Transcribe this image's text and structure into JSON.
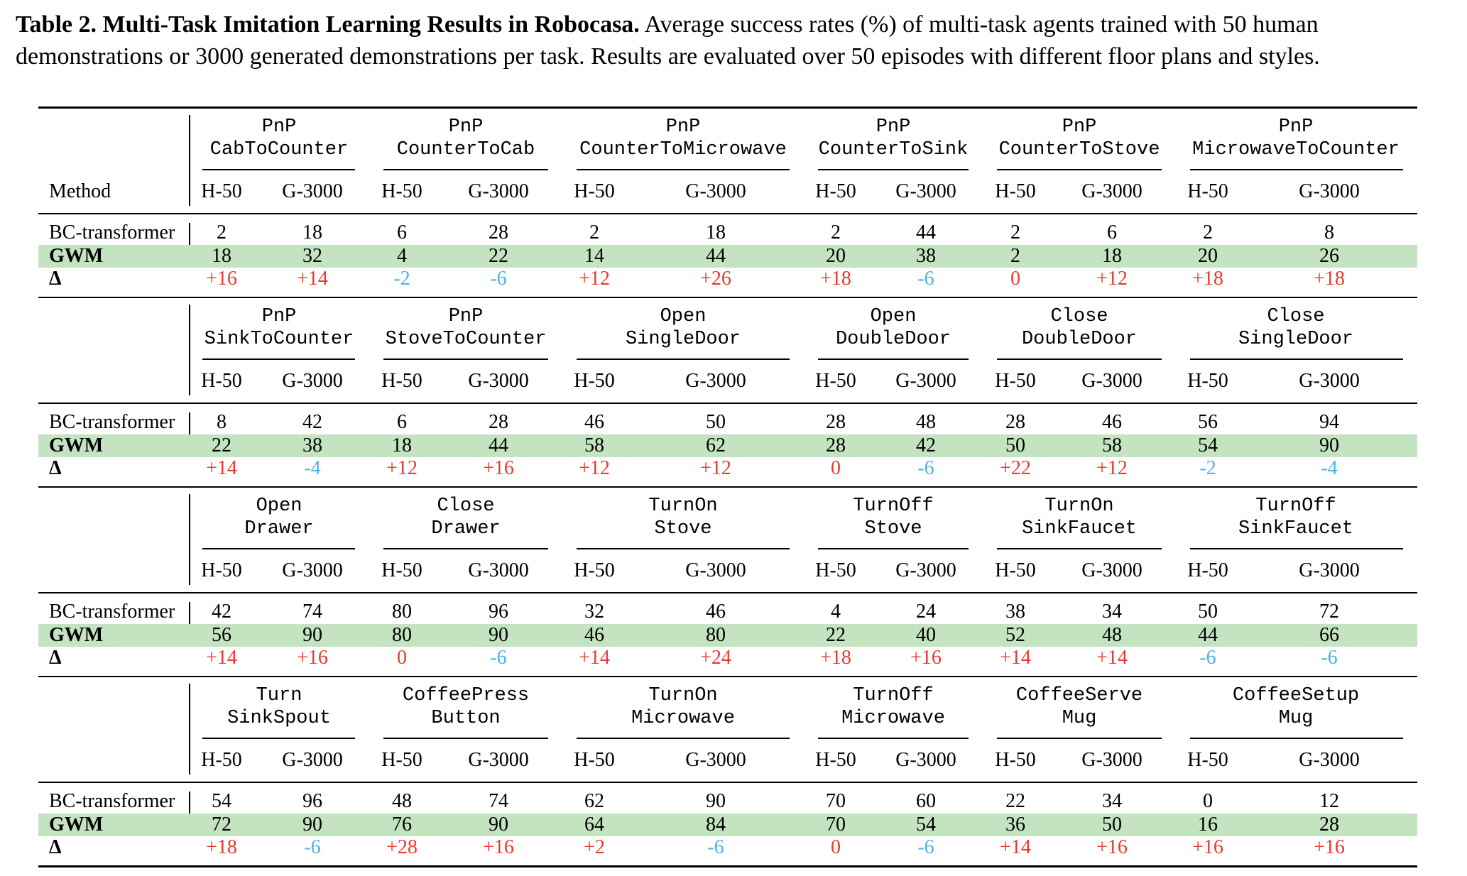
{
  "caption": {
    "label": "Table 2.",
    "title": "Multi-Task Imitation Learning Results in Robocasa.",
    "text": "Average success rates (%) of multi-task agents trained with 50 human demonstrations or 3000 generated demonstrations per task. Results are evaluated over 50 episodes with different floor plans and styles."
  },
  "table": {
    "method_header": "Method",
    "row_labels": [
      "BC-transformer",
      "GWM",
      "Δ"
    ],
    "sub_headers": [
      "H-50",
      "G-3000"
    ],
    "colors": {
      "positive": "#e53a2f",
      "negative": "#4ab3e0",
      "highlight": "#c4e3c0"
    },
    "blocks": [
      {
        "tasks": [
          {
            "line1": "PnP",
            "line2": "CabToCounter",
            "bc": [
              "2",
              "18"
            ],
            "gwm": [
              "18",
              "32"
            ],
            "delta": [
              "+16",
              "+14"
            ]
          },
          {
            "line1": "PnP",
            "line2": "CounterToCab",
            "bc": [
              "6",
              "28"
            ],
            "gwm": [
              "4",
              "22"
            ],
            "delta": [
              "-2",
              "-6"
            ]
          },
          {
            "line1": "PnP",
            "line2": "CounterToMicrowave",
            "bc": [
              "2",
              "18"
            ],
            "gwm": [
              "14",
              "44"
            ],
            "delta": [
              "+12",
              "+26"
            ]
          },
          {
            "line1": "PnP",
            "line2": "CounterToSink",
            "bc": [
              "2",
              "44"
            ],
            "gwm": [
              "20",
              "38"
            ],
            "delta": [
              "+18",
              "-6"
            ]
          },
          {
            "line1": "PnP",
            "line2": "CounterToStove",
            "bc": [
              "2",
              "6"
            ],
            "gwm": [
              "2",
              "18"
            ],
            "delta": [
              "0",
              "+12"
            ]
          },
          {
            "line1": "PnP",
            "line2": "MicrowaveToCounter",
            "bc": [
              "2",
              "8"
            ],
            "gwm": [
              "20",
              "26"
            ],
            "delta": [
              "+18",
              "+18"
            ]
          }
        ]
      },
      {
        "tasks": [
          {
            "line1": "PnP",
            "line2": "SinkToCounter",
            "bc": [
              "8",
              "42"
            ],
            "gwm": [
              "22",
              "38"
            ],
            "delta": [
              "+14",
              "-4"
            ]
          },
          {
            "line1": "PnP",
            "line2": "StoveToCounter",
            "bc": [
              "6",
              "28"
            ],
            "gwm": [
              "18",
              "44"
            ],
            "delta": [
              "+12",
              "+16"
            ]
          },
          {
            "line1": "Open",
            "line2": "SingleDoor",
            "bc": [
              "46",
              "50"
            ],
            "gwm": [
              "58",
              "62"
            ],
            "delta": [
              "+12",
              "+12"
            ]
          },
          {
            "line1": "Open",
            "line2": "DoubleDoor",
            "bc": [
              "28",
              "48"
            ],
            "gwm": [
              "28",
              "42"
            ],
            "delta": [
              "0",
              "-6"
            ]
          },
          {
            "line1": "Close",
            "line2": "DoubleDoor",
            "bc": [
              "28",
              "46"
            ],
            "gwm": [
              "50",
              "58"
            ],
            "delta": [
              "+22",
              "+12"
            ]
          },
          {
            "line1": "Close",
            "line2": "SingleDoor",
            "bc": [
              "56",
              "94"
            ],
            "gwm": [
              "54",
              "90"
            ],
            "delta": [
              "-2",
              "-4"
            ]
          }
        ]
      },
      {
        "tasks": [
          {
            "line1": "Open",
            "line2": "Drawer",
            "bc": [
              "42",
              "74"
            ],
            "gwm": [
              "56",
              "90"
            ],
            "delta": [
              "+14",
              "+16"
            ]
          },
          {
            "line1": "Close",
            "line2": "Drawer",
            "bc": [
              "80",
              "96"
            ],
            "gwm": [
              "80",
              "90"
            ],
            "delta": [
              "0",
              "-6"
            ]
          },
          {
            "line1": "TurnOn",
            "line2": "Stove",
            "bc": [
              "32",
              "46"
            ],
            "gwm": [
              "46",
              "80"
            ],
            "delta": [
              "+14",
              "+24"
            ]
          },
          {
            "line1": "TurnOff",
            "line2": "Stove",
            "bc": [
              "4",
              "24"
            ],
            "gwm": [
              "22",
              "40"
            ],
            "delta": [
              "+18",
              "+16"
            ]
          },
          {
            "line1": "TurnOn",
            "line2": "SinkFaucet",
            "bc": [
              "38",
              "34"
            ],
            "gwm": [
              "52",
              "48"
            ],
            "delta": [
              "+14",
              "+14"
            ]
          },
          {
            "line1": "TurnOff",
            "line2": "SinkFaucet",
            "bc": [
              "50",
              "72"
            ],
            "gwm": [
              "44",
              "66"
            ],
            "delta": [
              "-6",
              "-6"
            ]
          }
        ]
      },
      {
        "tasks": [
          {
            "line1": "Turn",
            "line2": "SinkSpout",
            "bc": [
              "54",
              "96"
            ],
            "gwm": [
              "72",
              "90"
            ],
            "delta": [
              "+18",
              "-6"
            ]
          },
          {
            "line1": "CoffeePress",
            "line2": "Button",
            "bc": [
              "48",
              "74"
            ],
            "gwm": [
              "76",
              "90"
            ],
            "delta": [
              "+28",
              "+16"
            ]
          },
          {
            "line1": "TurnOn",
            "line2": "Microwave",
            "bc": [
              "62",
              "90"
            ],
            "gwm": [
              "64",
              "84"
            ],
            "delta": [
              "+2",
              "-6"
            ]
          },
          {
            "line1": "TurnOff",
            "line2": "Microwave",
            "bc": [
              "70",
              "60"
            ],
            "gwm": [
              "70",
              "54"
            ],
            "delta": [
              "0",
              "-6"
            ]
          },
          {
            "line1": "CoffeeServe",
            "line2": "Mug",
            "bc": [
              "22",
              "34"
            ],
            "gwm": [
              "36",
              "50"
            ],
            "delta": [
              "+14",
              "+16"
            ]
          },
          {
            "line1": "CoffeeSetup",
            "line2": "Mug",
            "bc": [
              "0",
              "12"
            ],
            "gwm": [
              "16",
              "28"
            ],
            "delta": [
              "+16",
              "+16"
            ]
          }
        ]
      }
    ]
  }
}
